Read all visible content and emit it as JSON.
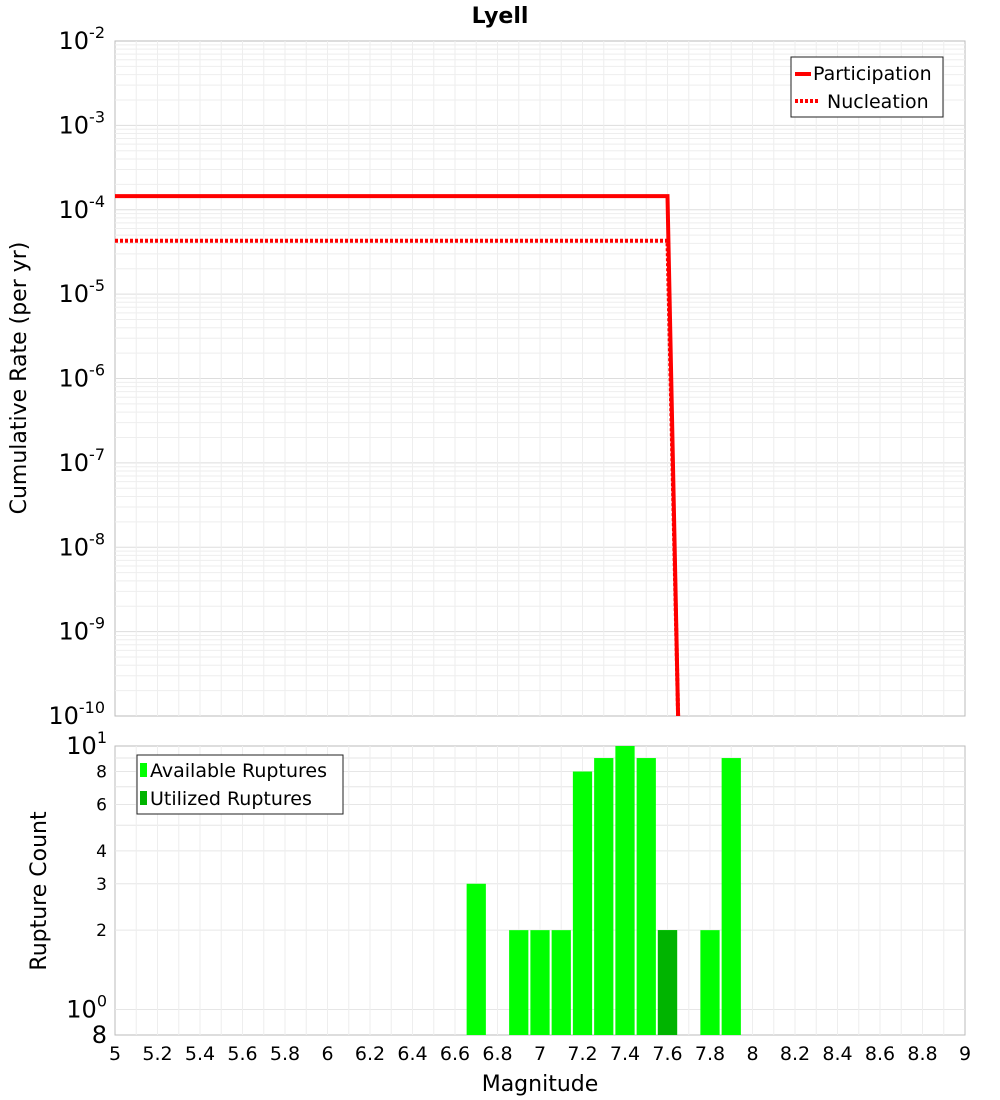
{
  "chart_data": [
    {
      "type": "line",
      "title": "Lyell",
      "ylabel": "Cumulative Rate (per yr)",
      "xlabel": "",
      "xlim": [
        5,
        9
      ],
      "ylim_exponents": [
        -10,
        -2
      ],
      "yscale": "log",
      "grid": true,
      "legend": "top-right",
      "y_tick_bases": [
        "10",
        "10",
        "10",
        "10",
        "10",
        "10",
        "10",
        "10",
        "10"
      ],
      "y_tick_exponents": [
        "-10",
        "-9",
        "-8",
        "-7",
        "-6",
        "-5",
        "-4",
        "-3",
        "-2"
      ],
      "series": [
        {
          "name": "Participation",
          "style": "solid",
          "color": "#ff0000",
          "points": [
            [
              5.0,
              0.000145
            ],
            [
              7.6,
              0.000145
            ],
            [
              7.65,
              1e-10
            ]
          ]
        },
        {
          "name": "Nucleation",
          "style": "dotted",
          "color": "#ff0000",
          "points": [
            [
              5.0,
              4.3e-05
            ],
            [
              7.6,
              4.3e-05
            ],
            [
              7.65,
              1e-10
            ]
          ]
        }
      ]
    },
    {
      "type": "bar",
      "xlabel": "Magnitude",
      "ylabel": "Rupture Count",
      "xlim": [
        5,
        9
      ],
      "ylim": [
        0.8,
        10
      ],
      "yscale": "log",
      "grid": true,
      "legend": "top-left",
      "x_ticks": [
        "5",
        "5.2",
        "5.4",
        "5.6",
        "5.8",
        "6",
        "6.2",
        "6.4",
        "6.6",
        "6.8",
        "7",
        "7.2",
        "7.4",
        "7.6",
        "7.8",
        "8",
        "8.2",
        "8.4",
        "8.6",
        "8.8",
        "9"
      ],
      "y_ticks": [
        {
          "value": 0.8,
          "label": "8",
          "base": "",
          "exp": "",
          "big": true
        },
        {
          "value": 1,
          "label": "",
          "base": "10",
          "exp": "0",
          "big": true
        },
        {
          "value": 2,
          "label": "2",
          "base": "",
          "exp": "",
          "big": false
        },
        {
          "value": 3,
          "label": "3",
          "base": "",
          "exp": "",
          "big": false
        },
        {
          "value": 4,
          "label": "4",
          "base": "",
          "exp": "",
          "big": false
        },
        {
          "value": 6,
          "label": "6",
          "base": "",
          "exp": "",
          "big": false
        },
        {
          "value": 8,
          "label": "8",
          "base": "",
          "exp": "",
          "big": false
        },
        {
          "value": 10,
          "label": "",
          "base": "10",
          "exp": "1",
          "big": true
        }
      ],
      "bin_width": 0.1,
      "series": [
        {
          "name": "Available Ruptures",
          "color": "#00ff00",
          "bins": [
            [
              6.7,
              3
            ],
            [
              6.9,
              2
            ],
            [
              7.0,
              2
            ],
            [
              7.1,
              2
            ],
            [
              7.2,
              8
            ],
            [
              7.3,
              9
            ],
            [
              7.4,
              10
            ],
            [
              7.5,
              9
            ],
            [
              7.6,
              2
            ],
            [
              7.8,
              2
            ],
            [
              7.9,
              9
            ]
          ]
        },
        {
          "name": "Utilized Ruptures",
          "color": "#00b400",
          "bins": [
            [
              7.6,
              2
            ]
          ]
        }
      ]
    }
  ]
}
